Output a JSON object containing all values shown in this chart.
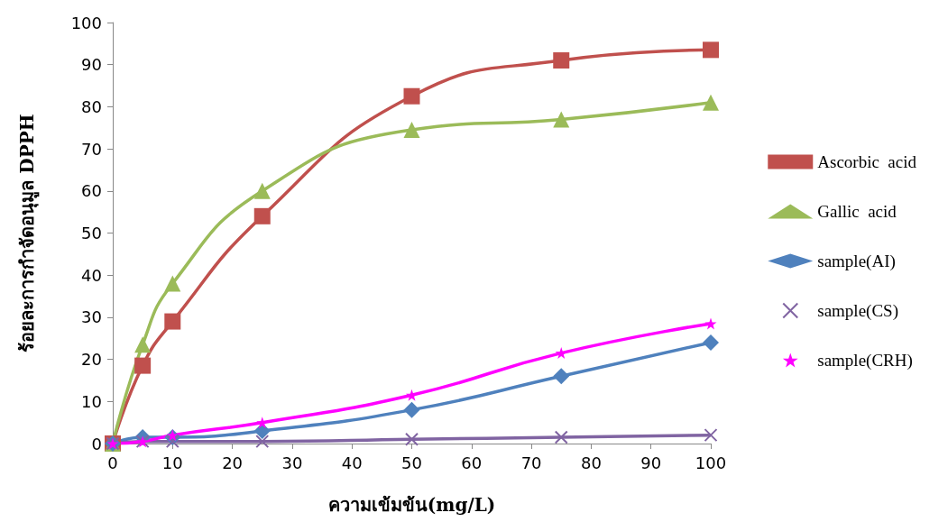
{
  "chart_data": {
    "type": "line",
    "xlabel": "ความเข้มข้น(mg/L)",
    "ylabel": "ร้อยละการกำจัดอนุมูล DPPH",
    "x": [
      0,
      5,
      10,
      25,
      50,
      75,
      100
    ],
    "series": [
      {
        "name": "Ascorbic  acid",
        "color": "#c0504d",
        "marker": "square",
        "values": [
          0,
          18.5,
          29,
          54,
          82.5,
          91,
          93.5
        ]
      },
      {
        "name": "Gallic  acid",
        "color": "#9bbb59",
        "marker": "triangle",
        "values": [
          0,
          23.5,
          38,
          60,
          74.5,
          77,
          81
        ]
      },
      {
        "name": "sample(AI)",
        "color": "#4f81bd",
        "marker": "diamond",
        "values": [
          0,
          1.5,
          1.5,
          3,
          8,
          16,
          24
        ]
      },
      {
        "name": "sample(CS)",
        "color": "#8064a2",
        "marker": "cross",
        "values": [
          0,
          0.5,
          0.5,
          0.5,
          1,
          1.5,
          2
        ]
      },
      {
        "name": "sample(CRH)",
        "color": "#ff00ff",
        "marker": "star",
        "values": [
          0,
          0.5,
          2,
          5,
          11.5,
          21.5,
          28.5
        ]
      }
    ],
    "xlim": [
      0,
      100
    ],
    "xticks": [
      0,
      10,
      20,
      30,
      40,
      50,
      60,
      70,
      80,
      90,
      100
    ],
    "ylim": [
      0,
      100
    ],
    "yticks": [
      0,
      10,
      20,
      30,
      40,
      50,
      60,
      70,
      80,
      90,
      100
    ],
    "grid": false,
    "legend": "right",
    "line_style": "solid"
  }
}
